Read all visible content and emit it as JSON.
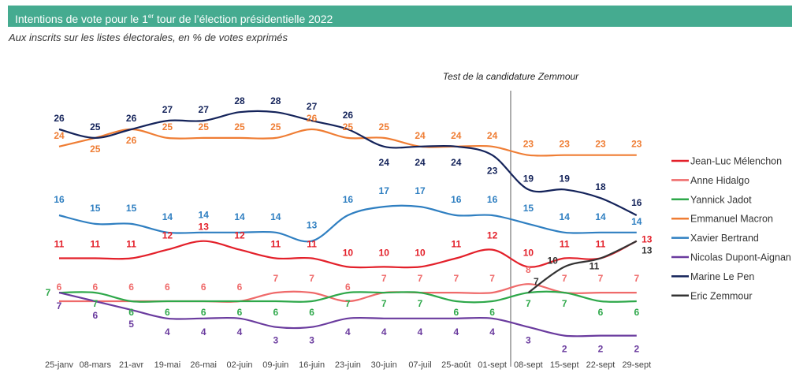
{
  "header": {
    "title_pre": "Intentions de vote pour le 1",
    "title_sup": "er",
    "title_post": " tour de l’élection présidentielle 2022"
  },
  "subtitle": "Aux inscrits sur les listes électorales, en % de votes exprimés",
  "chart_data": {
    "type": "line",
    "title": "Intentions de vote pour le 1er tour de l’élection présidentielle 2022",
    "subtitle": "Aux inscrits sur les listes électorales, en % de votes exprimés",
    "xlabel": "",
    "ylabel": "",
    "ylim": [
      0,
      30
    ],
    "grid": false,
    "legend_position": "right",
    "annotation": {
      "text": "Test de la candidature Zemmour",
      "at_category": "08-sept"
    },
    "categories": [
      "25-janv",
      "08-mars",
      "21-avr",
      "19-mai",
      "26-mai",
      "02-juin",
      "09-juin",
      "16-juin",
      "23-juin",
      "30-juin",
      "07-juil",
      "25-août",
      "01-sept",
      "08-sept",
      "15-sept",
      "22-sept",
      "29-sept"
    ],
    "series": [
      {
        "name": "Jean-Luc Mélenchon",
        "color": "#e3202a",
        "values": [
          11,
          11,
          11,
          12,
          13,
          12,
          11,
          11,
          10,
          10,
          10,
          11,
          12,
          10,
          11,
          11,
          13
        ]
      },
      {
        "name": "Anne Hidalgo",
        "color": "#ef6a6a",
        "values": [
          6,
          6,
          6,
          6,
          6,
          6,
          7,
          7,
          6,
          7,
          7,
          7,
          7,
          8,
          7,
          7,
          7
        ]
      },
      {
        "name": "Yannick Jadot",
        "color": "#2ea84a",
        "values": [
          7,
          7,
          6,
          6,
          6,
          6,
          6,
          6,
          7,
          7,
          7,
          6,
          6,
          7,
          7,
          6,
          6
        ]
      },
      {
        "name": "Emmanuel Macron",
        "color": "#ef7d34",
        "values": [
          24,
          25,
          26,
          25,
          25,
          25,
          25,
          26,
          25,
          25,
          24,
          24,
          24,
          23,
          23,
          23,
          23
        ]
      },
      {
        "name": "Xavier Bertrand",
        "color": "#2f7fc1",
        "values": [
          16,
          15,
          15,
          14,
          14,
          14,
          14,
          13,
          16,
          17,
          17,
          16,
          16,
          15,
          14,
          14,
          14
        ]
      },
      {
        "name": "Nicolas Dupont-Aignan",
        "color": "#6a3b9e",
        "values": [
          7,
          6,
          5,
          4,
          4,
          4,
          3,
          3,
          4,
          4,
          4,
          4,
          4,
          3,
          2,
          2,
          2
        ]
      },
      {
        "name": "Marine Le Pen",
        "color": "#14235a",
        "values": [
          26,
          25,
          26,
          27,
          27,
          28,
          28,
          27,
          26,
          24,
          24,
          24,
          23,
          19,
          19,
          18,
          16
        ]
      },
      {
        "name": "Eric Zemmour",
        "color": "#333333",
        "values": [
          null,
          null,
          null,
          null,
          null,
          null,
          null,
          null,
          null,
          null,
          null,
          null,
          null,
          7,
          10,
          11,
          13
        ]
      }
    ]
  }
}
